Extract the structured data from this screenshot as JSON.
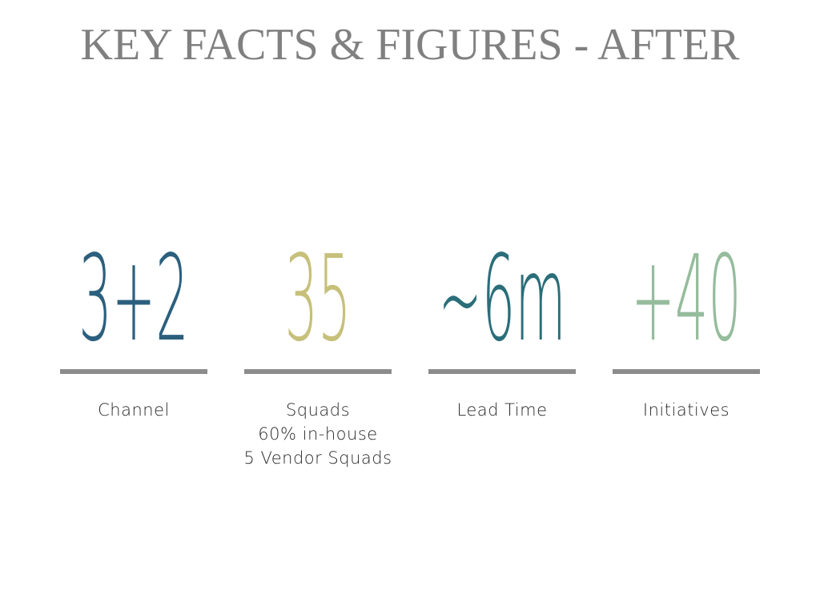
{
  "title": "KEY FACTS & FIGURES - AFTER",
  "facts": [
    {
      "value": "3+2",
      "color": "#2b5f7e",
      "lines": [
        "Channel"
      ]
    },
    {
      "value": "35",
      "color": "#c6c07a",
      "lines": [
        "Squads",
        "60% in-house",
        "5 Vendor Squads"
      ]
    },
    {
      "value": "~6m",
      "color": "#2a6e79",
      "lines": [
        "Lead Time"
      ]
    },
    {
      "value": "+40",
      "color": "#95bc9c",
      "lines": [
        "Initiatives"
      ]
    }
  ]
}
